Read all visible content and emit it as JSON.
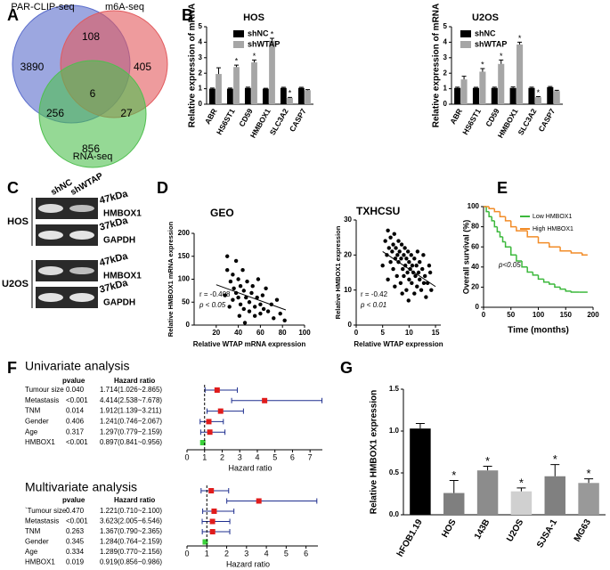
{
  "panel_labels": [
    "A",
    "B",
    "C",
    "D",
    "E",
    "F",
    "G"
  ],
  "venn": {
    "sets": [
      {
        "name": "PAR-CLIP-seq",
        "color": "#5a6dcc"
      },
      {
        "name": "m6A-seq",
        "color": "#e2595c"
      },
      {
        "name": "RNA-seq",
        "color": "#4fbf4f"
      }
    ],
    "counts": {
      "par_only": 3890,
      "par_m6a": 108,
      "m6a_only": 405,
      "all": 6,
      "par_rna": 256,
      "m6a_rna": 27,
      "rna_only": 856
    }
  },
  "western_blot": {
    "lanes": [
      "shNC",
      "shWTAP"
    ],
    "cell_lines": [
      "HOS",
      "U2OS"
    ],
    "proteins": [
      {
        "name": "HMBOX1",
        "size": "47kDa"
      },
      {
        "name": "GAPDH",
        "size": "37kDa"
      }
    ]
  },
  "chart_data": [
    {
      "type": "grouped_bar",
      "title": "HOS",
      "y_label": "Relative expression of mRNA",
      "categories": [
        "ABR",
        "HS6ST1",
        "CD59",
        "HMBOX1",
        "SLC3A2",
        "CASP7"
      ],
      "series": [
        {
          "name": "shNC",
          "color": "#000000",
          "values": [
            1,
            1,
            1.05,
            1,
            1.05,
            1.05
          ],
          "errors": [
            0.04,
            0.04,
            0.05,
            0.03,
            0.04,
            0.04
          ]
        },
        {
          "name": "shWTAP",
          "color": "#a6a6a6",
          "values": [
            1.95,
            2.4,
            2.7,
            4.1,
            0.4,
            0.9
          ],
          "errors": [
            0.4,
            0.12,
            0.15,
            0.15,
            0.04,
            0.04
          ],
          "significance": [
            null,
            "*",
            "*",
            "*",
            "*",
            null
          ]
        }
      ],
      "ylim": [
        0,
        5
      ],
      "yticks": [
        0,
        1,
        2,
        3,
        4,
        5
      ]
    },
    {
      "type": "grouped_bar",
      "title": "U2OS",
      "y_label": "Relative expression of mRNA",
      "categories": [
        "ABR",
        "HS6ST1",
        "CD59",
        "HMBOX1",
        "SLC3A2",
        "CASP7"
      ],
      "series": [
        {
          "name": "shNC",
          "color": "#000000",
          "values": [
            1.05,
            1.05,
            1.05,
            1.05,
            1.05,
            1.1
          ],
          "errors": [
            0.05,
            0.04,
            0.05,
            0.06,
            0.05,
            0.04
          ]
        },
        {
          "name": "shWTAP",
          "color": "#a6a6a6",
          "values": [
            1.6,
            2.1,
            2.6,
            3.85,
            0.45,
            0.85
          ],
          "errors": [
            0.2,
            0.2,
            0.25,
            0.15,
            0.04,
            0.05
          ],
          "significance": [
            null,
            "*",
            "*",
            "*",
            "*",
            null
          ]
        }
      ],
      "ylim": [
        0,
        5
      ],
      "yticks": [
        0,
        1,
        2,
        3,
        4,
        5
      ]
    },
    {
      "type": "scatter",
      "title": "GEO",
      "x_label": "Relative WTAP mRNA expression",
      "y_label": "Relative HMBOX1 mRNA expression",
      "x": [
        30,
        30,
        33,
        35,
        36,
        38,
        38,
        40,
        40,
        42,
        42,
        44,
        45,
        45,
        47,
        48,
        50,
        50,
        52,
        53,
        55,
        55,
        57,
        58,
        60,
        60,
        62,
        63,
        65,
        67,
        70,
        72,
        75,
        78,
        82,
        35,
        32,
        28,
        41,
        46
      ],
      "y": [
        150,
        120,
        95,
        110,
        80,
        140,
        70,
        100,
        60,
        85,
        45,
        120,
        75,
        35,
        60,
        95,
        50,
        30,
        70,
        85,
        40,
        20,
        60,
        100,
        45,
        25,
        65,
        35,
        80,
        30,
        45,
        15,
        55,
        25,
        10,
        55,
        40,
        65,
        20,
        5
      ],
      "fit": {
        "x": [
          20,
          83
        ],
        "y": [
          88,
          33
        ]
      },
      "annotations": [
        "r = -0.408",
        "p < 0.05"
      ],
      "xlim": [
        0,
        100
      ],
      "xticks": [
        20,
        40,
        60,
        80,
        100
      ],
      "ylim": [
        0,
        200
      ],
      "yticks": [
        0,
        50,
        100,
        150,
        200
      ]
    },
    {
      "type": "scatter",
      "title": "TXHCSU",
      "x_label": "Relative WTAP expression",
      "y_label": "Relative HMBOX1 expression",
      "x": [
        5.5,
        5.8,
        6,
        6.2,
        6.5,
        6.5,
        6.8,
        7,
        7,
        7.2,
        7.4,
        7.5,
        7.7,
        7.8,
        8,
        8,
        8.2,
        8.4,
        8.5,
        8.6,
        8.8,
        9,
        9,
        9.2,
        9.3,
        9.5,
        9.5,
        9.7,
        9.8,
        10,
        10,
        10.2,
        10.4,
        10.5,
        10.6,
        10.8,
        11,
        11,
        11.2,
        11.4,
        11.5,
        11.8,
        12,
        12,
        12.3,
        12.5,
        12.8,
        13,
        13.2,
        13.5,
        14,
        14.2,
        5,
        6,
        7.3,
        8.7,
        9.9,
        11.6,
        12.7,
        13.8
      ],
      "y": [
        24,
        20,
        27,
        22,
        18,
        25,
        21,
        23,
        16,
        26,
        19,
        22,
        14,
        20,
        24,
        18,
        21,
        12,
        19,
        23,
        16,
        20,
        14,
        22,
        17,
        19,
        10,
        15,
        21,
        18,
        13,
        16,
        20,
        12,
        17,
        15,
        19,
        9,
        14,
        17,
        11,
        15,
        13,
        18,
        10,
        16,
        12,
        14,
        8,
        12,
        15,
        10,
        17,
        13,
        11,
        9,
        7,
        21,
        20,
        17
      ],
      "fit": {
        "x": [
          5,
          15
        ],
        "y": [
          21,
          11
        ]
      },
      "annotations": [
        "r = -0.42",
        "p < 0.01"
      ],
      "xlim": [
        0,
        16
      ],
      "xticks": [
        0,
        5,
        10,
        15
      ],
      "ylim": [
        0,
        30
      ],
      "yticks": [
        0,
        10,
        20,
        30
      ]
    },
    {
      "type": "survival",
      "x_label": "Time (months)",
      "y_label": "Overall survival (%)",
      "series": [
        {
          "name": "Low HMBOX1",
          "color": "#3cb83c",
          "x": [
            0,
            5,
            10,
            15,
            20,
            25,
            30,
            35,
            40,
            50,
            60,
            70,
            80,
            90,
            100,
            110,
            120,
            130,
            140,
            150,
            160,
            175,
            190
          ],
          "values": [
            100,
            95,
            90,
            86,
            80,
            75,
            70,
            65,
            60,
            52,
            46,
            40,
            35,
            32,
            28,
            25,
            23,
            20,
            18,
            16,
            15,
            15,
            15
          ]
        },
        {
          "name": "High HMBOX1",
          "color": "#f28c28",
          "x": [
            0,
            10,
            20,
            30,
            40,
            50,
            60,
            80,
            100,
            120,
            140,
            160,
            180,
            190
          ],
          "values": [
            100,
            98,
            95,
            90,
            86,
            80,
            76,
            70,
            64,
            60,
            56,
            54,
            52,
            52
          ]
        }
      ],
      "annotations": [
        "p<0.05"
      ],
      "xlim": [
        0,
        200
      ],
      "xticks": [
        0,
        50,
        100,
        150,
        200
      ],
      "ylim": [
        0,
        100
      ],
      "yticks": [
        0,
        20,
        40,
        60,
        80,
        100
      ]
    },
    {
      "type": "forest",
      "title": "Univariate analysis",
      "columns": [
        "pvalue",
        "Hazard ratio"
      ],
      "rows": [
        "Tumour size",
        "Metastasis",
        "TNM",
        "Gender",
        "Age",
        "HMBOX1"
      ],
      "p_labels": [
        "0.040",
        "<0.001",
        "0.014",
        "0.406",
        "0.317",
        "<0.001"
      ],
      "hr_labels": [
        "1.714(1.026~2.865)",
        "4.414(2.538~7.678)",
        "1.912(1.139~3.211)",
        "1.241(0.746~2.067)",
        "1.297(0.779~2.159)",
        "0.897(0.841~0.956)"
      ],
      "values": [
        1.714,
        4.414,
        1.912,
        1.241,
        1.297,
        0.897
      ],
      "lower": [
        1.026,
        2.538,
        1.139,
        0.746,
        0.779,
        0.841
      ],
      "upper": [
        2.865,
        7.678,
        3.211,
        2.067,
        2.159,
        0.956
      ],
      "reference": 1,
      "x_label": "Hazard ratio",
      "xlim": [
        0,
        7.7
      ],
      "xticks": [
        0,
        1,
        2,
        3,
        4,
        5,
        6,
        7
      ]
    },
    {
      "type": "forest",
      "title": "Multivariate analysis",
      "columns": [
        "pvalue",
        "Hazard ratio"
      ],
      "rows": [
        "`Tumour size`",
        "Metastasis",
        "TNM",
        "Gender",
        "Age",
        "HMBOX1"
      ],
      "p_labels": [
        "0.470",
        "<0.001",
        "0.263",
        "0.345",
        "0.334",
        "0.019"
      ],
      "hr_labels": [
        "1.221(0.710~2.100)",
        "3.623(2.005~6.546)",
        "1.367(0.790~2.365)",
        "1.284(0.764~2.159)",
        "1.289(0.770~2.156)",
        "0.919(0.856~0.986)"
      ],
      "values": [
        1.221,
        3.623,
        1.367,
        1.284,
        1.289,
        0.919
      ],
      "lower": [
        0.71,
        2.005,
        0.79,
        0.764,
        0.77,
        0.856
      ],
      "upper": [
        2.1,
        6.546,
        2.365,
        2.159,
        2.156,
        0.986
      ],
      "reference": 1,
      "x_label": "Hazard ratio",
      "xlim": [
        0,
        6.6
      ],
      "xticks": [
        0,
        1,
        2,
        3,
        4,
        5,
        6
      ]
    },
    {
      "type": "bar",
      "y_label": "Relative HMBOX1 expression",
      "categories": [
        "hFOB1.19",
        "HOS",
        "143B",
        "U2OS",
        "SJSA-1",
        "MG63"
      ],
      "values": [
        1.03,
        0.26,
        0.53,
        0.28,
        0.46,
        0.38
      ],
      "errors": [
        0.06,
        0.15,
        0.05,
        0.04,
        0.14,
        0.05
      ],
      "colors": [
        "#000000",
        "#7f7f7f",
        "#8c8c8c",
        "#d0d0d0",
        "#808080",
        "#999999"
      ],
      "significance": [
        null,
        "*",
        "*",
        "*",
        "*",
        "*"
      ],
      "ylim": [
        0,
        1.5
      ],
      "yticks": [
        {
          "value": 0,
          "label": "0.0"
        },
        {
          "value": 0.5,
          "label": "0.5"
        },
        {
          "value": 1,
          "label": "1.0"
        },
        1.5
      ]
    }
  ]
}
